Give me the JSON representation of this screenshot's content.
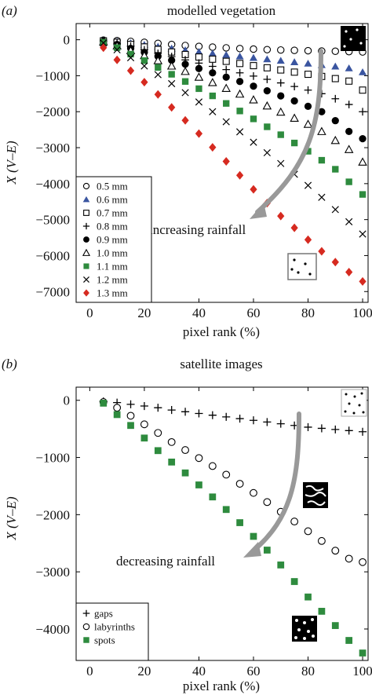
{
  "chart_data": [
    {
      "type": "scatter",
      "panel_label": "(a)",
      "title": "modelled vegetation",
      "xlabel": "pixel rank (%)",
      "ylabel": "X (V–E)",
      "xlim": [
        -5,
        102
      ],
      "ylim": [
        -7300,
        450
      ],
      "xticks": [
        0,
        20,
        40,
        60,
        80,
        100
      ],
      "yticks": [
        0,
        -1000,
        -2000,
        -3000,
        -4000,
        -5000,
        -6000,
        -7000
      ],
      "grid": false,
      "legend_position": "bottom-left",
      "annotation": "increasing rainfall",
      "x": [
        5,
        10,
        15,
        20,
        25,
        30,
        35,
        40,
        45,
        50,
        55,
        60,
        65,
        70,
        75,
        80,
        85,
        90,
        95,
        100
      ],
      "series": [
        {
          "name": "0.5 mm",
          "marker": "circle-open",
          "color": "#000000",
          "values": [
            -10,
            -25,
            -45,
            -70,
            -100,
            -130,
            -160,
            -185,
            -205,
            -225,
            -245,
            -260,
            -275,
            -285,
            -295,
            -305,
            -315,
            -320,
            -330,
            -340
          ]
        },
        {
          "name": "0.6 mm",
          "marker": "triangle-filled",
          "color": "#3a55a0",
          "values": [
            -20,
            -50,
            -90,
            -140,
            -190,
            -240,
            -290,
            -335,
            -380,
            -420,
            -460,
            -500,
            -540,
            -580,
            -620,
            -660,
            -700,
            -740,
            -790,
            -900
          ]
        },
        {
          "name": "0.7 mm",
          "marker": "square-open",
          "color": "#000000",
          "values": [
            -30,
            -70,
            -130,
            -200,
            -270,
            -340,
            -410,
            -480,
            -540,
            -600,
            -660,
            -720,
            -780,
            -840,
            -900,
            -960,
            -1020,
            -1080,
            -1150,
            -1400
          ]
        },
        {
          "name": "0.8 mm",
          "marker": "plus",
          "color": "#000000",
          "values": [
            -40,
            -100,
            -180,
            -280,
            -380,
            -470,
            -560,
            -650,
            -740,
            -830,
            -920,
            -1010,
            -1100,
            -1200,
            -1300,
            -1400,
            -1500,
            -1640,
            -1800,
            -2000
          ]
        },
        {
          "name": "0.9 mm",
          "marker": "circle-filled",
          "color": "#000000",
          "values": [
            -50,
            -130,
            -240,
            -350,
            -460,
            -570,
            -680,
            -800,
            -920,
            -1040,
            -1160,
            -1290,
            -1420,
            -1560,
            -1700,
            -1850,
            -2000,
            -2250,
            -2550,
            -2750
          ]
        },
        {
          "name": "1.0 mm",
          "marker": "triangle-open",
          "color": "#000000",
          "values": [
            -60,
            -170,
            -300,
            -440,
            -580,
            -730,
            -880,
            -1040,
            -1190,
            -1350,
            -1510,
            -1670,
            -1840,
            -2010,
            -2180,
            -2350,
            -2550,
            -2800,
            -3050,
            -3400
          ]
        },
        {
          "name": "1.1 mm",
          "marker": "square-filled",
          "color": "#2e8b3e",
          "values": [
            -70,
            -220,
            -400,
            -580,
            -770,
            -960,
            -1160,
            -1360,
            -1560,
            -1770,
            -1980,
            -2200,
            -2420,
            -2640,
            -2870,
            -3100,
            -3350,
            -3600,
            -3950,
            -4300
          ]
        },
        {
          "name": "1.2 mm",
          "marker": "x",
          "color": "#000000",
          "values": [
            -90,
            -280,
            -500,
            -730,
            -970,
            -1220,
            -1470,
            -1730,
            -2000,
            -2280,
            -2560,
            -2850,
            -3140,
            -3440,
            -3740,
            -4050,
            -4380,
            -4720,
            -5060,
            -5400
          ]
        },
        {
          "name": "1.3 mm",
          "marker": "diamond-filled",
          "color": "#d62a20",
          "values": [
            -220,
            -560,
            -860,
            -1180,
            -1520,
            -1880,
            -2240,
            -2610,
            -2990,
            -3380,
            -3770,
            -4160,
            -4540,
            -4900,
            -5230,
            -5560,
            -5880,
            -6180,
            -6460,
            -6720
          ]
        }
      ]
    },
    {
      "type": "scatter",
      "panel_label": "(b)",
      "title": "satellite images",
      "xlabel": "pixel rank (%)",
      "ylabel": "X (V–E)",
      "xlim": [
        -5,
        102
      ],
      "ylim": [
        -4550,
        230
      ],
      "xticks": [
        0,
        20,
        40,
        60,
        80,
        100
      ],
      "yticks": [
        0,
        -1000,
        -2000,
        -3000,
        -4000
      ],
      "grid": false,
      "legend_position": "bottom-left",
      "annotation": "decreasing rainfall",
      "x": [
        5,
        10,
        15,
        20,
        25,
        30,
        35,
        40,
        45,
        50,
        55,
        60,
        65,
        70,
        75,
        80,
        85,
        90,
        95,
        100
      ],
      "series": [
        {
          "name": "gaps",
          "marker": "plus",
          "color": "#000000",
          "values": [
            -20,
            -40,
            -70,
            -100,
            -130,
            -170,
            -200,
            -230,
            -260,
            -290,
            -320,
            -350,
            -380,
            -410,
            -440,
            -470,
            -490,
            -510,
            -530,
            -550
          ]
        },
        {
          "name": "labyrinths",
          "marker": "circle-open",
          "color": "#000000",
          "values": [
            -30,
            -130,
            -270,
            -420,
            -570,
            -730,
            -870,
            -1010,
            -1150,
            -1300,
            -1460,
            -1620,
            -1780,
            -1950,
            -2120,
            -2290,
            -2460,
            -2630,
            -2770,
            -2830
          ]
        },
        {
          "name": "spots",
          "marker": "square-filled",
          "color": "#2e8b3e",
          "values": [
            -50,
            -250,
            -440,
            -660,
            -880,
            -1080,
            -1270,
            -1480,
            -1690,
            -1910,
            -2140,
            -2380,
            -2620,
            -2880,
            -3170,
            -3440,
            -3690,
            -3940,
            -4200,
            -4420
          ]
        }
      ]
    }
  ]
}
